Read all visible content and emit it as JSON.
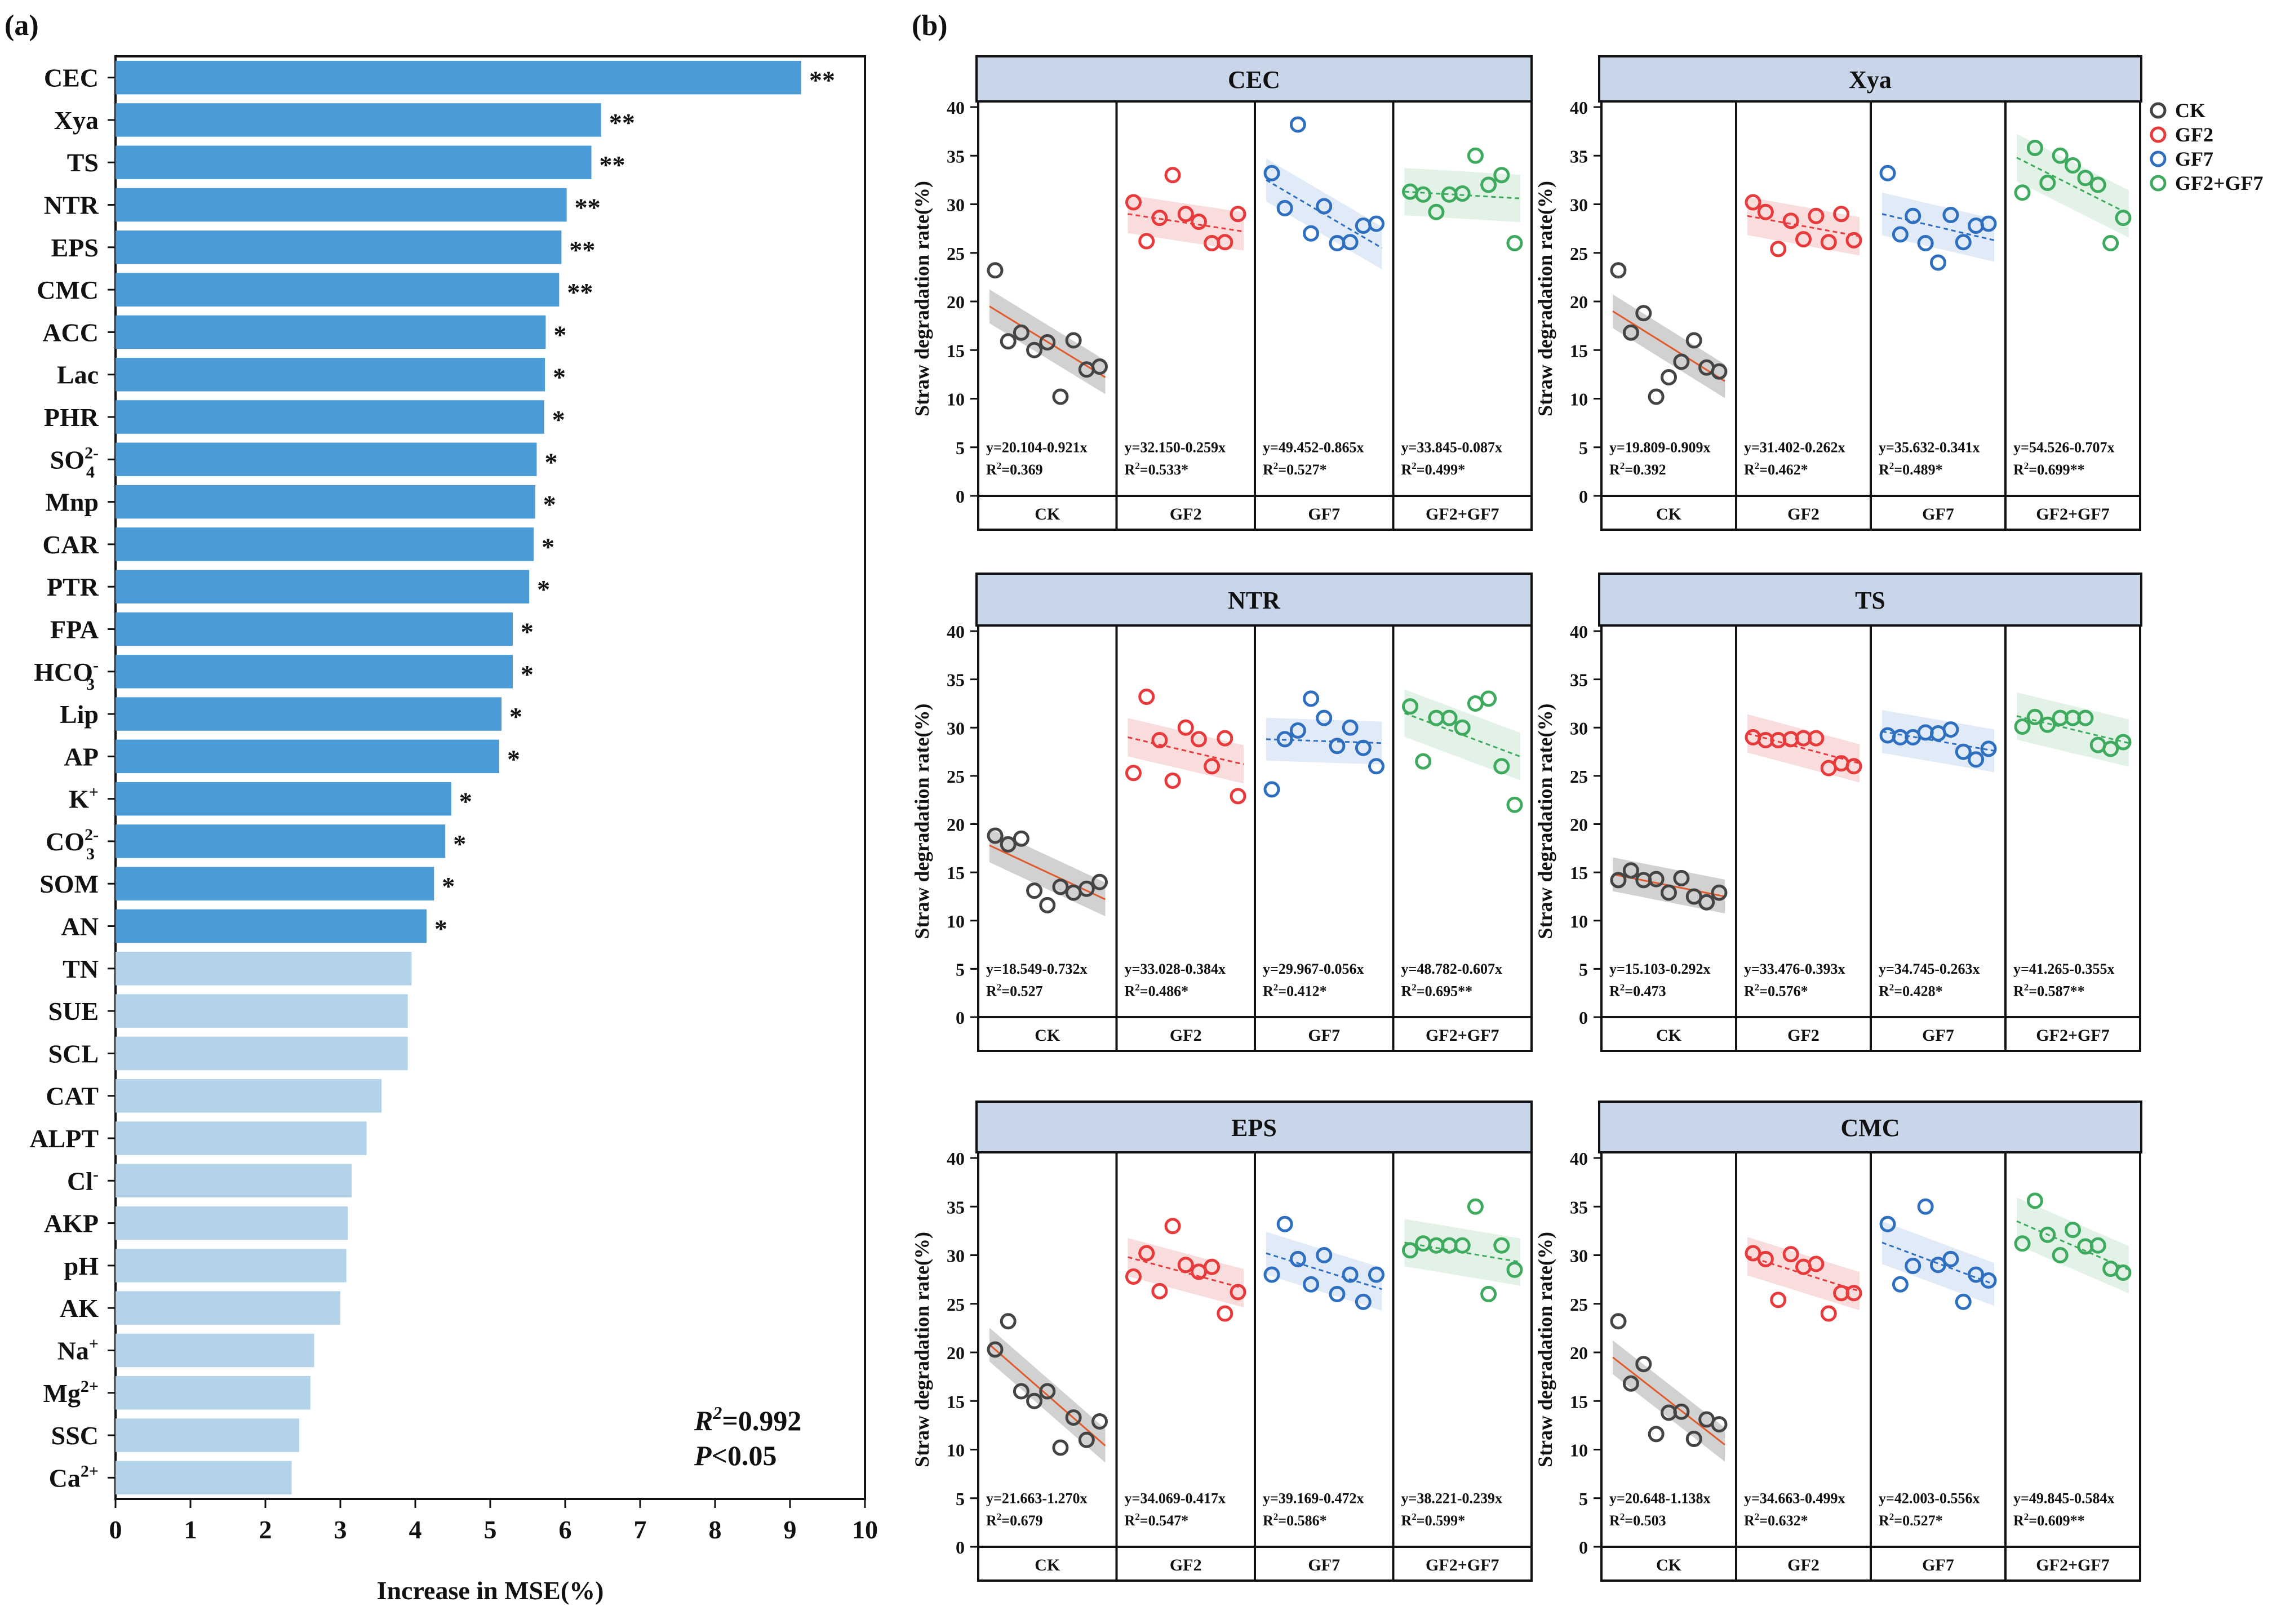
{
  "panel_a_label": "(a)",
  "panel_b_label": "(b)",
  "chart_data": [
    {
      "type": "bar",
      "orientation": "horizontal",
      "panel": "(a)",
      "categories": [
        "CEC",
        "Xya",
        "TS",
        "NTR",
        "EPS",
        "CMC",
        "ACC",
        "Lac",
        "PHR",
        "SO42-",
        "Mnp",
        "CAR",
        "PTR",
        "FPA",
        "HCO3-",
        "Lip",
        "AP",
        "K+",
        "CO32-",
        "SOM",
        "AN",
        "TN",
        "SUE",
        "SCL",
        "CAT",
        "ALPT",
        "Cl-",
        "AKP",
        "pH",
        "AK",
        "Na+",
        "Mg2+",
        "SSC",
        "Ca2+"
      ],
      "category_labels": [
        {
          "base": "CEC"
        },
        {
          "base": "Xya"
        },
        {
          "base": "TS"
        },
        {
          "base": "NTR"
        },
        {
          "base": "EPS"
        },
        {
          "base": "CMC"
        },
        {
          "base": "ACC"
        },
        {
          "base": "Lac"
        },
        {
          "base": "PHR"
        },
        {
          "base": "SO",
          "sub": "4",
          "sup": "2-"
        },
        {
          "base": "Mnp"
        },
        {
          "base": "CAR"
        },
        {
          "base": "PTR"
        },
        {
          "base": "FPA"
        },
        {
          "base": "HCO",
          "sub": "3",
          "sup": "-"
        },
        {
          "base": "Lip"
        },
        {
          "base": "AP"
        },
        {
          "base": "K",
          "sup": "+"
        },
        {
          "base": "CO",
          "sub": "3",
          "sup": "2-"
        },
        {
          "base": "SOM"
        },
        {
          "base": "AN"
        },
        {
          "base": "TN"
        },
        {
          "base": "SUE"
        },
        {
          "base": "SCL"
        },
        {
          "base": "CAT"
        },
        {
          "base": "ALPT"
        },
        {
          "base": "Cl",
          "sup": "-"
        },
        {
          "base": "AKP"
        },
        {
          "base": "pH"
        },
        {
          "base": "AK"
        },
        {
          "base": "Na",
          "sup": "+"
        },
        {
          "base": "Mg",
          "sup": "2+"
        },
        {
          "base": "SSC"
        },
        {
          "base": "Ca",
          "sup": "2+"
        }
      ],
      "values": [
        9.15,
        6.48,
        6.35,
        6.02,
        5.95,
        5.92,
        5.74,
        5.73,
        5.72,
        5.62,
        5.6,
        5.58,
        5.52,
        5.3,
        5.3,
        5.15,
        5.12,
        4.48,
        4.4,
        4.25,
        4.15,
        3.95,
        3.9,
        3.9,
        3.55,
        3.35,
        3.15,
        3.1,
        3.08,
        3.0,
        2.65,
        2.6,
        2.45,
        2.35
      ],
      "significance": [
        "**",
        "**",
        "**",
        "**",
        "**",
        "**",
        "*",
        "*",
        "*",
        "*",
        "*",
        "*",
        "*",
        "*",
        "*",
        "*",
        "*",
        "*",
        "*",
        "*",
        "*",
        "",
        "",
        "",
        "",
        "",
        "",
        "",
        "",
        "",
        "",
        "",
        "",
        ""
      ],
      "xlabel": "Increase in MSE(%)",
      "xlim": [
        0,
        10
      ],
      "xticks": [
        "0",
        "1",
        "2",
        "3",
        "4",
        "5",
        "6",
        "7",
        "8",
        "9",
        "10"
      ],
      "annotation_r2": "=0.992",
      "annotation_p": "<0.05",
      "colors": {
        "significant": "#4A9BD6",
        "nonsignificant": "#B3D3EA"
      }
    },
    {
      "type": "scatter",
      "panel": "(b)",
      "ylabel": "Straw degradation rate(%)",
      "ylim": [
        0,
        40
      ],
      "yticks": [
        "0",
        "5",
        "10",
        "15",
        "20",
        "25",
        "30",
        "35",
        "40"
      ],
      "groups": [
        "CK",
        "GF2",
        "GF7",
        "GF2+GF7"
      ],
      "legend": [
        {
          "name": "CK",
          "color": "#444444"
        },
        {
          "name": "GF2",
          "color": "#E8393B"
        },
        {
          "name": "GF7",
          "color": "#2E6FBF"
        },
        {
          "name": "GF2+GF7",
          "color": "#3DAA5E"
        }
      ],
      "facets": [
        {
          "title": "CEC",
          "equations": [
            "y=20.104-0.921x",
            "y=32.150-0.259x",
            "y=49.452-0.865x",
            "y=33.845-0.087x"
          ],
          "r2": [
            "=0.369",
            "=0.533*",
            "=0.527*",
            "=0.499*"
          ],
          "points": [
            [
              23.2,
              15.9,
              16.8,
              15.0,
              15.8,
              10.2,
              16.0,
              13.0,
              13.3
            ],
            [
              30.2,
              26.2,
              28.6,
              33.0,
              29.0,
              28.2,
              26.0,
              26.1,
              29.0
            ],
            [
              33.2,
              29.6,
              38.2,
              27.0,
              29.8,
              26.0,
              26.1,
              27.8,
              28.0
            ],
            [
              31.3,
              31.0,
              29.2,
              31.0,
              31.1,
              35.0,
              32.0,
              33.0,
              26.0
            ]
          ],
          "fit": [
            [
              19.5,
              12.2
            ],
            [
              29.0,
              27.2
            ],
            [
              32.5,
              25.5
            ],
            [
              31.3,
              30.6
            ]
          ]
        },
        {
          "title": "Xya",
          "equations": [
            "y=19.809-0.909x",
            "y=31.402-0.262x",
            "y=35.632-0.341x",
            "y=54.526-0.707x"
          ],
          "r2": [
            "=0.392",
            "=0.462*",
            "=0.489*",
            "=0.699**"
          ],
          "points": [
            [
              23.2,
              16.8,
              18.8,
              10.2,
              12.2,
              13.8,
              16.0,
              13.2,
              12.8
            ],
            [
              30.2,
              29.2,
              25.4,
              28.3,
              26.4,
              28.8,
              26.1,
              29.0,
              26.3
            ],
            [
              33.2,
              26.9,
              28.8,
              26.0,
              24.0,
              28.9,
              26.1,
              27.8,
              28.0
            ],
            [
              31.2,
              35.8,
              32.2,
              35.0,
              34.0,
              32.7,
              32.0,
              26.0,
              28.6
            ]
          ],
          "fit": [
            [
              19.0,
              11.8
            ],
            [
              28.8,
              26.7
            ],
            [
              29.0,
              26.3
            ],
            [
              34.8,
              29.0
            ]
          ]
        },
        {
          "title": "NTR",
          "equations": [
            "y=18.549-0.732x",
            "y=33.028-0.384x",
            "y=29.967-0.056x",
            "y=48.782-0.607x"
          ],
          "r2": [
            "=0.527",
            "=0.486*",
            "=0.412*",
            "=0.695**"
          ],
          "points": [
            [
              18.8,
              17.9,
              18.5,
              13.1,
              11.6,
              13.5,
              12.9,
              13.3,
              14.0
            ],
            [
              25.3,
              33.2,
              28.7,
              24.5,
              30.0,
              28.8,
              26.0,
              28.9,
              22.9
            ],
            [
              23.6,
              28.8,
              29.7,
              33.0,
              31.0,
              28.1,
              30.0,
              27.9,
              26.0
            ],
            [
              32.2,
              26.5,
              31.0,
              31.0,
              30.0,
              32.5,
              33.0,
              26.0,
              22.0
            ]
          ],
          "fit": [
            [
              17.8,
              12.2
            ],
            [
              29.0,
              26.2
            ],
            [
              28.8,
              28.4
            ],
            [
              31.5,
              27.0
            ]
          ]
        },
        {
          "title": "TS",
          "equations": [
            "y=15.103-0.292x",
            "y=33.476-0.393x",
            "y=34.745-0.263x",
            "y=41.265-0.355x"
          ],
          "r2": [
            "=0.473",
            "=0.576*",
            "=0.428*",
            "=0.587**"
          ],
          "points": [
            [
              14.2,
              15.2,
              14.2,
              14.3,
              12.9,
              14.4,
              12.5,
              11.9,
              12.9
            ],
            [
              29.0,
              28.7,
              28.7,
              28.8,
              28.9,
              28.9,
              25.8,
              26.3,
              26.0
            ],
            [
              29.2,
              29.0,
              29.0,
              29.5,
              29.4,
              29.8,
              27.5,
              26.7,
              27.8
            ],
            [
              30.1,
              31.1,
              30.3,
              31.0,
              31.0,
              31.0,
              28.2,
              27.8,
              28.5
            ]
          ],
          "fit": [
            [
              14.8,
              12.5
            ],
            [
              29.4,
              26.3
            ],
            [
              29.6,
              27.6
            ],
            [
              31.2,
              28.4
            ]
          ]
        },
        {
          "title": "EPS",
          "equations": [
            "y=21.663-1.270x",
            "y=34.069-0.417x",
            "y=39.169-0.472x",
            "y=38.221-0.239x"
          ],
          "r2": [
            "=0.679",
            "=0.547*",
            "=0.586*",
            "=0.599*"
          ],
          "points": [
            [
              20.3,
              23.2,
              16.0,
              15.0,
              16.0,
              10.2,
              13.3,
              11.0,
              12.9
            ],
            [
              27.8,
              30.2,
              26.3,
              33.0,
              29.0,
              28.3,
              28.8,
              24.0,
              26.2
            ],
            [
              28.0,
              33.2,
              29.6,
              27.0,
              30.0,
              26.0,
              28.0,
              25.2,
              28.0
            ],
            [
              30.5,
              31.2,
              31.0,
              31.0,
              31.0,
              35.0,
              26.0,
              31.0,
              28.5
            ]
          ],
          "fit": [
            [
              20.8,
              10.4
            ],
            [
              29.8,
              26.6
            ],
            [
              30.2,
              26.5
            ],
            [
              31.3,
              29.3
            ]
          ]
        },
        {
          "title": "CMC",
          "equations": [
            "y=20.648-1.138x",
            "y=34.663-0.499x",
            "y=42.003-0.556x",
            "y=49.845-0.584x"
          ],
          "r2": [
            "=0.503",
            "=0.632*",
            "=0.527*",
            "=0.609**"
          ],
          "points": [
            [
              23.2,
              16.8,
              18.8,
              11.6,
              13.8,
              13.9,
              11.1,
              13.1,
              12.6
            ],
            [
              30.2,
              29.6,
              25.4,
              30.1,
              28.8,
              29.1,
              24.0,
              26.1,
              26.1
            ],
            [
              33.2,
              27.0,
              28.9,
              35.0,
              29.0,
              29.6,
              25.2,
              28.0,
              27.4
            ],
            [
              31.2,
              35.6,
              32.1,
              30.0,
              32.6,
              30.9,
              31.0,
              28.6,
              28.2
            ]
          ],
          "fit": [
            [
              19.5,
              10.5
            ],
            [
              29.9,
              26.3
            ],
            [
              31.3,
              27.0
            ],
            [
              33.5,
              28.5
            ]
          ]
        }
      ]
    }
  ]
}
